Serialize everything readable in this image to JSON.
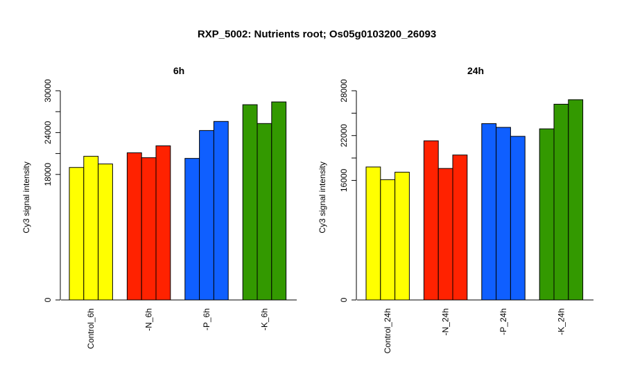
{
  "title": "RXP_5002: Nutrients root; Os05g0103200_26093",
  "chart_data": [
    {
      "type": "bar",
      "title": "6h",
      "ylabel": "Cy3 signal intensity",
      "xlabel": "",
      "ylim": [
        0,
        30000
      ],
      "yticks": [
        0,
        18000,
        24000,
        30000
      ],
      "groups": [
        {
          "label": "Control_6h",
          "color": "#ffff00",
          "values": [
            19000,
            20600,
            19500
          ]
        },
        {
          "label": "-N_6h",
          "color": "#ff2200",
          "values": [
            21100,
            20400,
            22100
          ]
        },
        {
          "label": "-P_6h",
          "color": "#0f5fff",
          "values": [
            20300,
            24300,
            25600
          ]
        },
        {
          "label": "-K_6h",
          "color": "#339900",
          "values": [
            28000,
            25300,
            28400
          ]
        }
      ]
    },
    {
      "type": "bar",
      "title": "24h",
      "ylabel": "Cy3 signal intensity",
      "xlabel": "",
      "ylim": [
        0,
        28000
      ],
      "yticks": [
        0,
        16000,
        22000,
        28000
      ],
      "groups": [
        {
          "label": "Control_24h",
          "color": "#ffff00",
          "values": [
            17800,
            16100,
            17100
          ]
        },
        {
          "label": "-N_24h",
          "color": "#ff2200",
          "values": [
            21300,
            17600,
            19400
          ]
        },
        {
          "label": "-P_24h",
          "color": "#0f5fff",
          "values": [
            23600,
            23100,
            21900
          ]
        },
        {
          "label": "-K_24h",
          "color": "#339900",
          "values": [
            22900,
            26200,
            26800
          ]
        }
      ]
    }
  ]
}
